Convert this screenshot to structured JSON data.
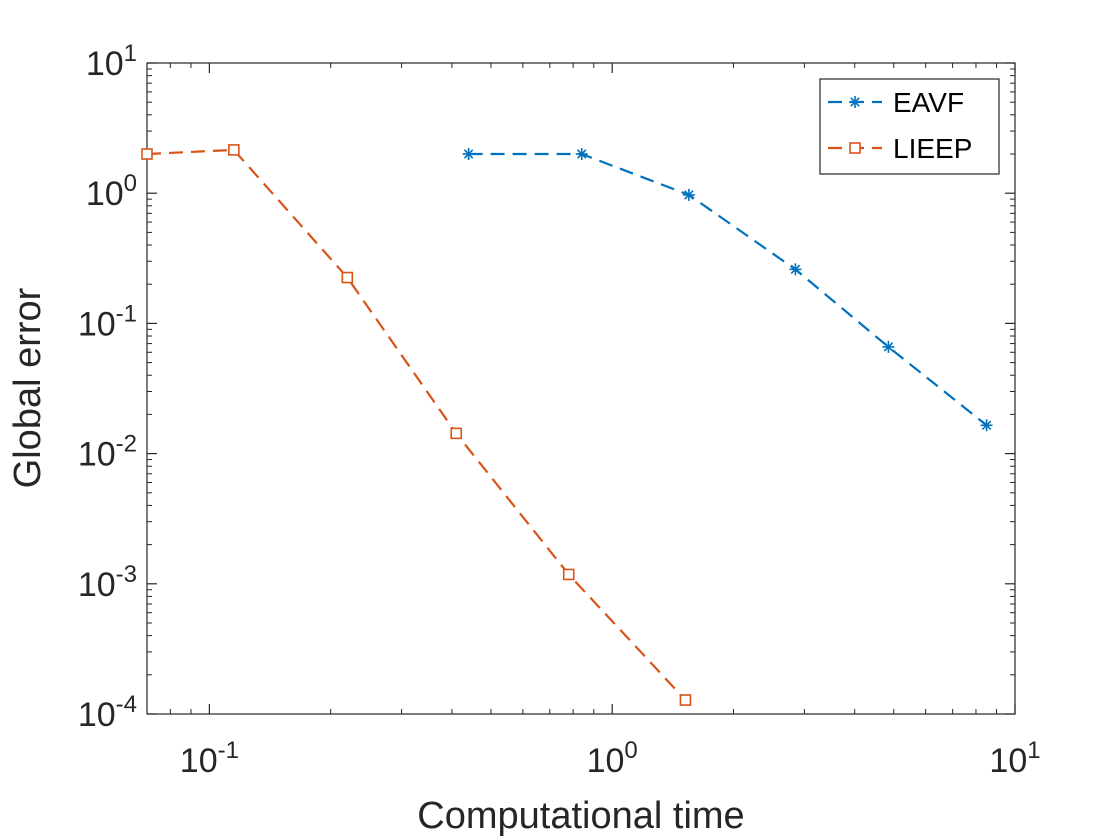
{
  "chart_data": {
    "type": "line",
    "xscale": "log",
    "yscale": "log",
    "xlim": [
      0.07,
      10
    ],
    "ylim": [
      0.0001,
      10
    ],
    "xticks": [
      {
        "value": 0.1,
        "base": "10",
        "exp": "-1"
      },
      {
        "value": 1,
        "base": "10",
        "exp": "0"
      },
      {
        "value": 10,
        "base": "10",
        "exp": "1"
      }
    ],
    "yticks": [
      {
        "value": 0.0001,
        "base": "10",
        "exp": "-4"
      },
      {
        "value": 0.001,
        "base": "10",
        "exp": "-3"
      },
      {
        "value": 0.01,
        "base": "10",
        "exp": "-2"
      },
      {
        "value": 0.1,
        "base": "10",
        "exp": "-1"
      },
      {
        "value": 1,
        "base": "10",
        "exp": "0"
      },
      {
        "value": 10,
        "base": "10",
        "exp": "1"
      }
    ],
    "xlabel": "Computational time",
    "ylabel": "Global error",
    "grid": false,
    "legend_position": "top-right",
    "series": [
      {
        "name": "EAVF",
        "color": "#0072BD",
        "marker": "asterisk",
        "linestyle": "dashed",
        "x": [
          0.44,
          0.84,
          1.55,
          2.85,
          4.85,
          8.5
        ],
        "y": [
          2.0,
          2.0,
          0.97,
          0.26,
          0.066,
          0.0165
        ]
      },
      {
        "name": "LIEEP",
        "color": "#D95319",
        "marker": "square",
        "linestyle": "dashed",
        "x": [
          0.07,
          0.115,
          0.22,
          0.41,
          0.78,
          1.52
        ],
        "y": [
          2.0,
          2.15,
          0.225,
          0.0143,
          0.00118,
          0.000128
        ]
      }
    ]
  }
}
